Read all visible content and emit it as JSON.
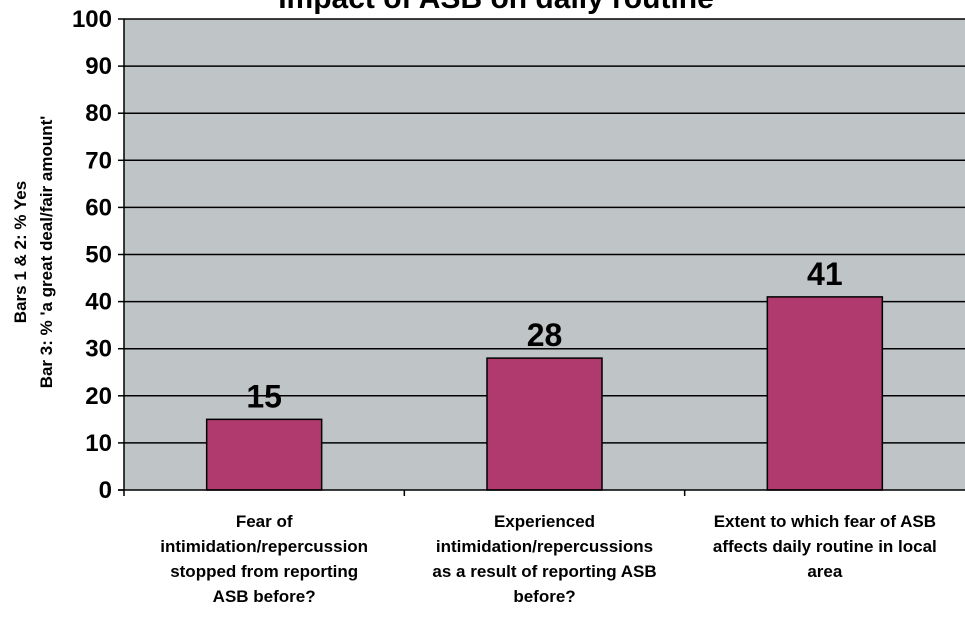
{
  "chart_data": {
    "type": "bar",
    "title": "Impact of ASB on daily routine",
    "ylabel_lines": [
      "Bars 1 & 2: % Yes",
      "Bar 3: % 'a great deal/fair amount'"
    ],
    "xlabel": "",
    "categories": [
      "Fear of intimidation/repercussion stopped from reporting ASB before?",
      "Experienced intimidation/repercussions as a result of reporting ASB before?",
      "Extent to which fear of ASB affects daily routine in local area"
    ],
    "category_label_lines": [
      [
        "Fear of",
        "intimidation/repercussion",
        "stopped from reporting",
        "ASB before?"
      ],
      [
        "Experienced",
        "intimidation/repercussions",
        "as a result of reporting ASB",
        "before?"
      ],
      [
        "Extent to which fear of ASB",
        "affects daily routine in local",
        "area"
      ]
    ],
    "values": [
      15,
      28,
      41
    ],
    "data_labels": [
      "15",
      "28",
      "41"
    ],
    "ylim": [
      0,
      100
    ],
    "yticks": [
      0,
      10,
      20,
      30,
      40,
      50,
      60,
      70,
      80,
      90,
      100
    ],
    "grid": true,
    "legend": "none",
    "colors": {
      "bar": "#B03A6E",
      "plot_background": "#BFC5C6",
      "gridline": "#000000",
      "text": "#000000"
    }
  }
}
